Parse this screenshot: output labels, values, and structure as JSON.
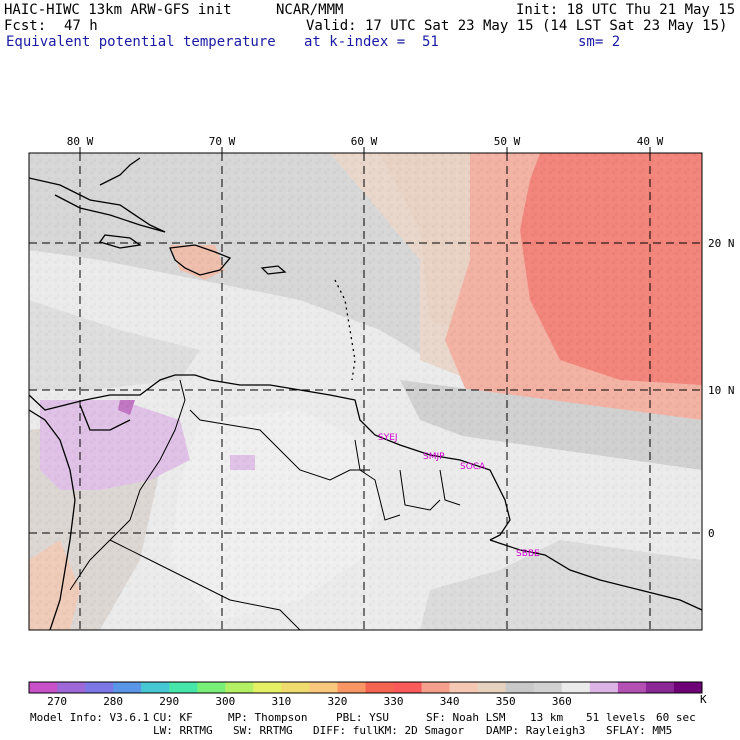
{
  "header": {
    "model": "HAIC-HIWC 13km ARW-GFS init",
    "org": "NCAR/MMM",
    "init": "Init: 18 UTC Thu 21 May 15",
    "fcst_label": "Fcst:",
    "fcst_value": "47 h",
    "valid": "Valid: 17 UTC Sat 23 May 15 (14 LST Sat 23 May 15)",
    "field": "Equivalent potential temperature",
    "level": "at k-index =  51",
    "smooth": "sm= 2"
  },
  "map": {
    "lon_labels": [
      "80 W",
      "70 W",
      "60 W",
      "50 W",
      "40 W"
    ],
    "lat_labels": [
      "20 N",
      "10 N",
      "0"
    ],
    "stations": [
      "SYEJ",
      "SMJP",
      "SOCA",
      "SBBE"
    ]
  },
  "colorbar": {
    "unit": "K",
    "ticks": [
      "270",
      "280",
      "290",
      "300",
      "310",
      "320",
      "330",
      "340",
      "350",
      "360"
    ],
    "colors": [
      "#c850c8",
      "#9e68d8",
      "#7c78e8",
      "#5a96e8",
      "#46c8d2",
      "#46e6aa",
      "#78f078",
      "#b4f064",
      "#e6f064",
      "#f0dc6e",
      "#fac87d",
      "#fa9664",
      "#f56450",
      "#fa5a5a",
      "#f5a08c",
      "#f5c8b4",
      "#e6d2be",
      "#c8c8c8",
      "#d2d2d2",
      "#ebebeb",
      "#dcb4e6",
      "#b450b4",
      "#8c2896",
      "#6e0078"
    ]
  },
  "footer": {
    "line1": [
      "Model Info: V3.6.1",
      "CU: KF",
      "MP: Thompson",
      "PBL: YSU",
      "SF: Noah LSM",
      "13 km",
      "51 levels",
      "60 sec"
    ],
    "line2": [
      "LW: RRTMG",
      "SW: RRTMG",
      "DIFF: full",
      "KM: 2D Smagor",
      "DAMP: Rayleigh3",
      "SFLAY: MM5"
    ]
  }
}
